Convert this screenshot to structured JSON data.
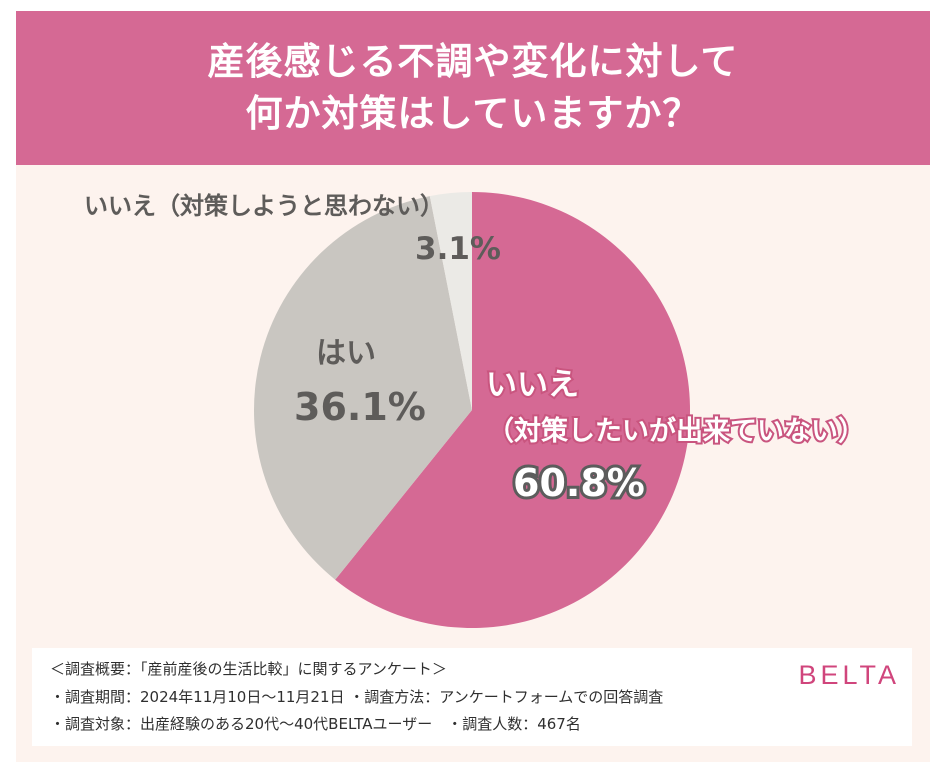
{
  "header": {
    "title_line1": "産後感じる不調や変化に対して",
    "title_line2": "何か対策はしていますか？"
  },
  "colors": {
    "header_bg": "#d56994",
    "background": "#fdf3ee",
    "slice_1": "#d56994",
    "slice_2": "#c9c6c1",
    "slice_3": "#ebeae6",
    "label_gray": "#5e5c5a",
    "brand": "#d0457c"
  },
  "chart_data": {
    "type": "pie",
    "title": "産後感じる不調や変化に対して何か対策はしていますか？",
    "slices": [
      {
        "label_line1": "いいえ",
        "label_line2": "（対策したいが出来ていない）",
        "value": 60.8,
        "value_label": "60.8%"
      },
      {
        "label_line1": "はい",
        "label_line2": "",
        "value": 36.1,
        "value_label": "36.1%"
      },
      {
        "label_line1": "いいえ（対策しようと思わない）",
        "label_line2": "",
        "value": 3.1,
        "value_label": "3.1%"
      }
    ],
    "start": "top",
    "direction": "clockwise",
    "legend": "none"
  },
  "footer": {
    "line1": "＜調査概要：「産前産後の生活比較」に関するアンケート＞",
    "line2": "・調査期間：2024年11月10日～11月21日 ・調査方法：アンケートフォームでの回答調査",
    "line3": "・調査対象：出産経験のある20代～40代BELTAユーザー　・調査人数：467名",
    "brand": "BELTA"
  }
}
